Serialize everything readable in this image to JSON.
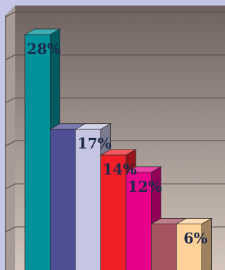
{
  "chart_data": {
    "type": "bar",
    "bar3d": true,
    "grid": true,
    "ylim": [
      0,
      30
    ],
    "values": [
      28,
      17,
      17,
      14,
      12,
      6,
      6
    ],
    "colors": [
      "#00929b",
      "#4f4f95",
      "#c6c6e3",
      "#f21f29",
      "#e8008a",
      "#a85360",
      "#ffd29a"
    ],
    "labels": [
      "28%",
      "",
      "17%",
      "14%",
      "12%",
      "",
      "6%"
    ],
    "background_top": "#6e625f",
    "background_bottom": "#d3c6bd",
    "label_color": "#1a2a4a"
  }
}
